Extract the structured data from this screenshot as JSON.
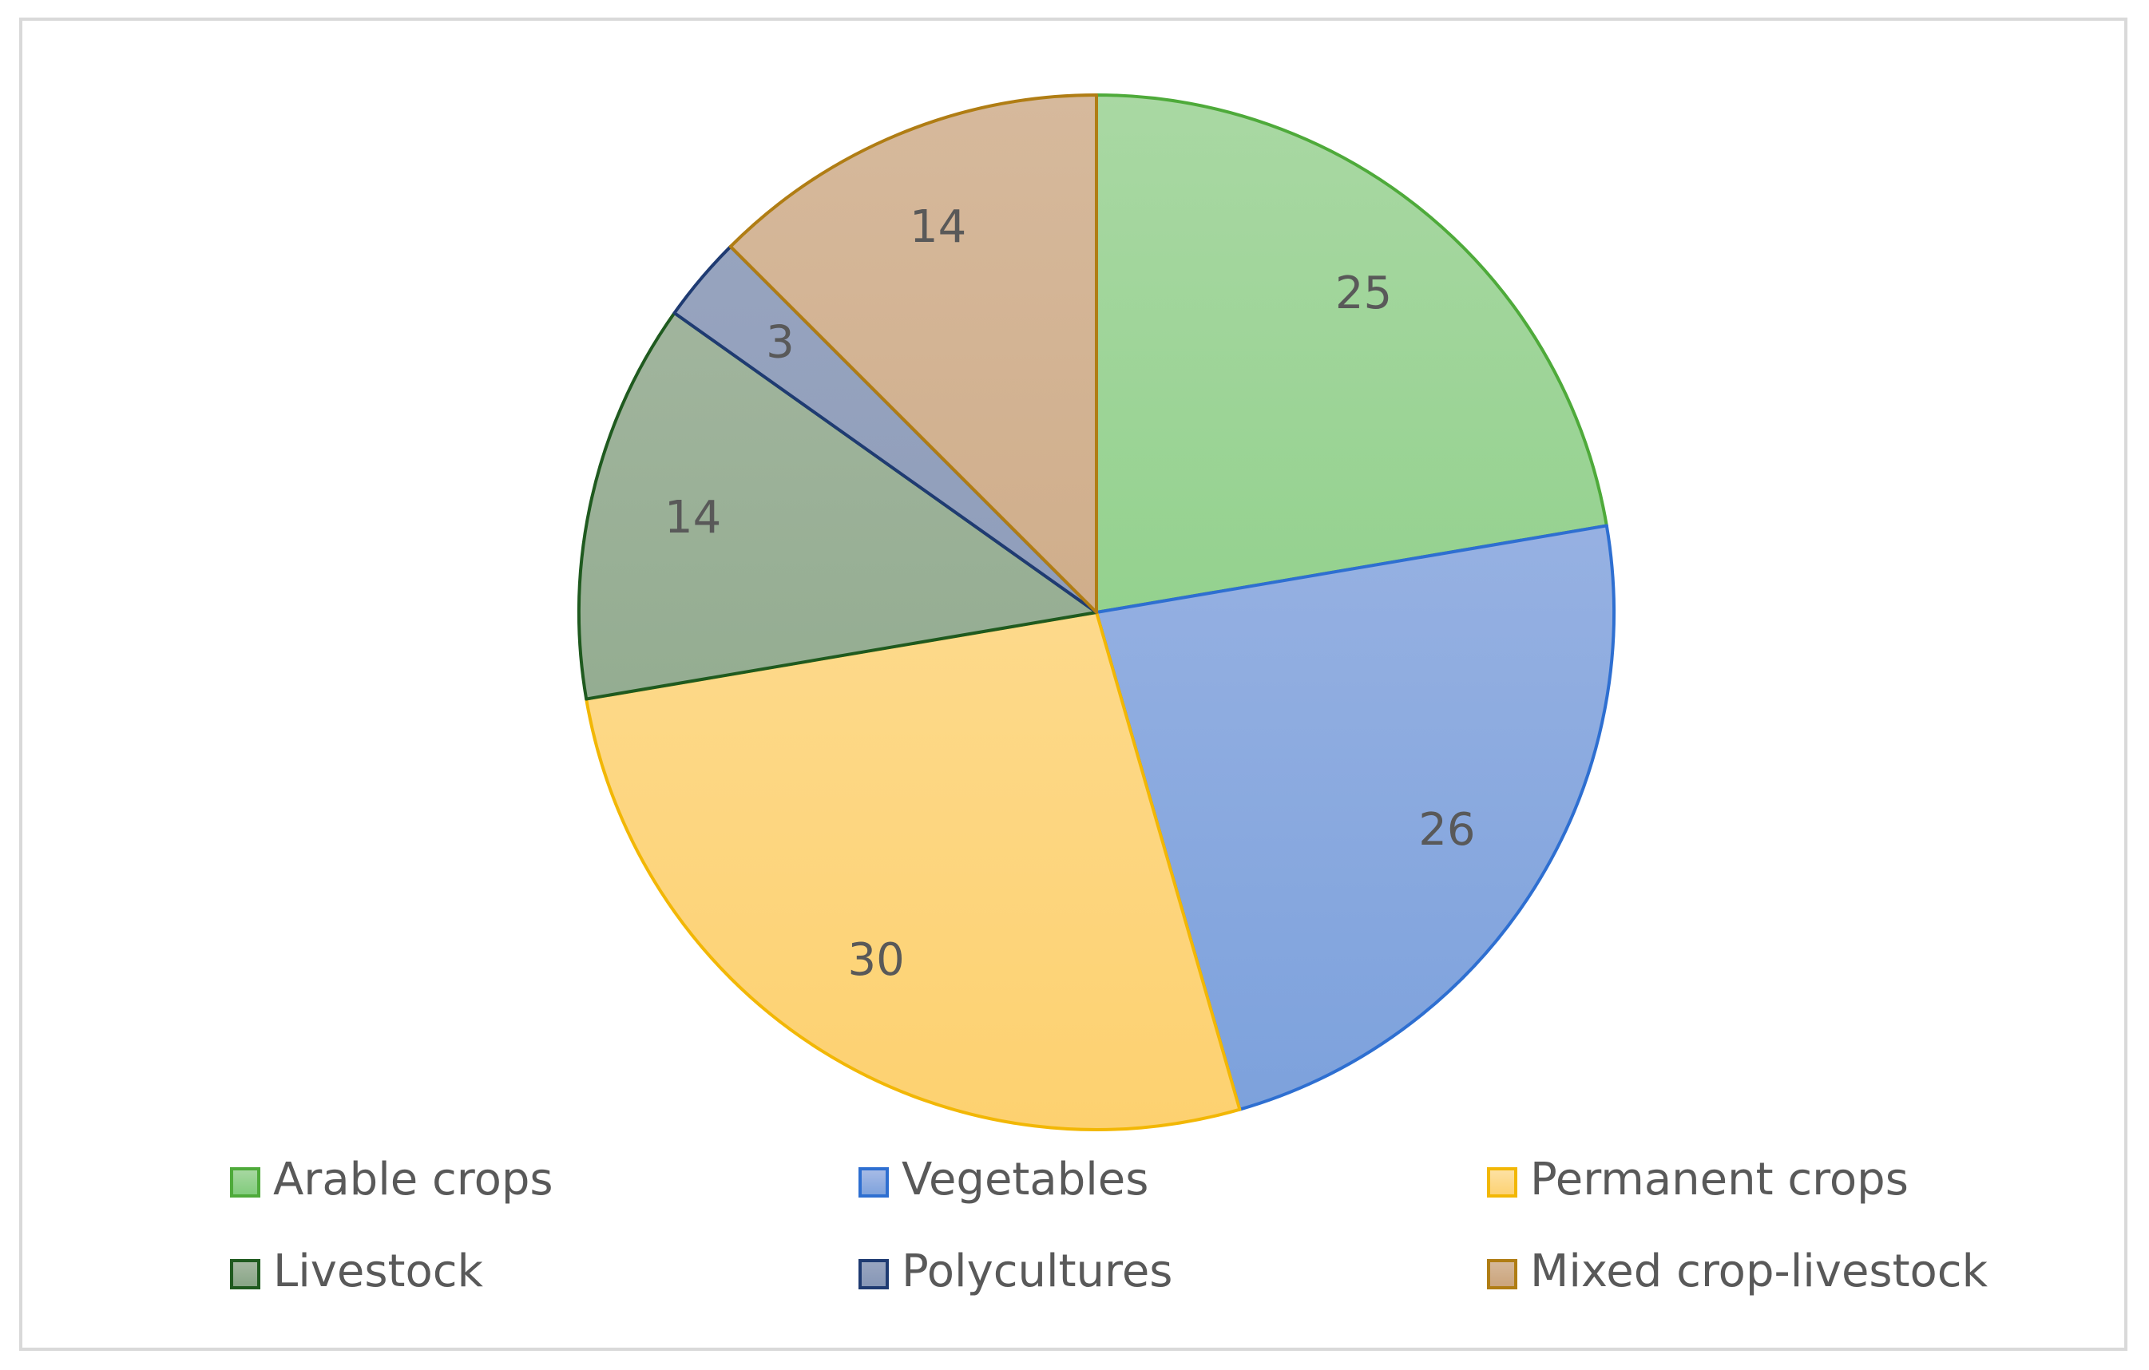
{
  "chart_data": {
    "type": "pie",
    "title": "",
    "legend_position": "bottom",
    "slices": [
      {
        "label": "Arable crops",
        "value": 25,
        "fill_top": "#a9d8a3",
        "fill_bottom": "#7fcb7a",
        "stroke": "#4eaa3a"
      },
      {
        "label": "Vegetables",
        "value": 26,
        "fill_top": "#a9bce6",
        "fill_bottom": "#7ca1dc",
        "stroke": "#2e6fd1"
      },
      {
        "label": "Permanent crops",
        "value": 30,
        "fill_top": "#fde2a6",
        "fill_bottom": "#fdd170",
        "stroke": "#f2b705"
      },
      {
        "label": "Livestock",
        "value": 14,
        "fill_top": "#a8b9a4",
        "fill_bottom": "#86a484",
        "stroke": "#1f5a1f"
      },
      {
        "label": "Polycultures",
        "value": 3,
        "fill_top": "#9aa6c0",
        "fill_bottom": "#8596b6",
        "stroke": "#1f3b72"
      },
      {
        "label": "Mixed crop-livestock",
        "value": 14,
        "fill_top": "#d6b99c",
        "fill_bottom": "#caa37a",
        "stroke": "#b07d14"
      }
    ]
  }
}
